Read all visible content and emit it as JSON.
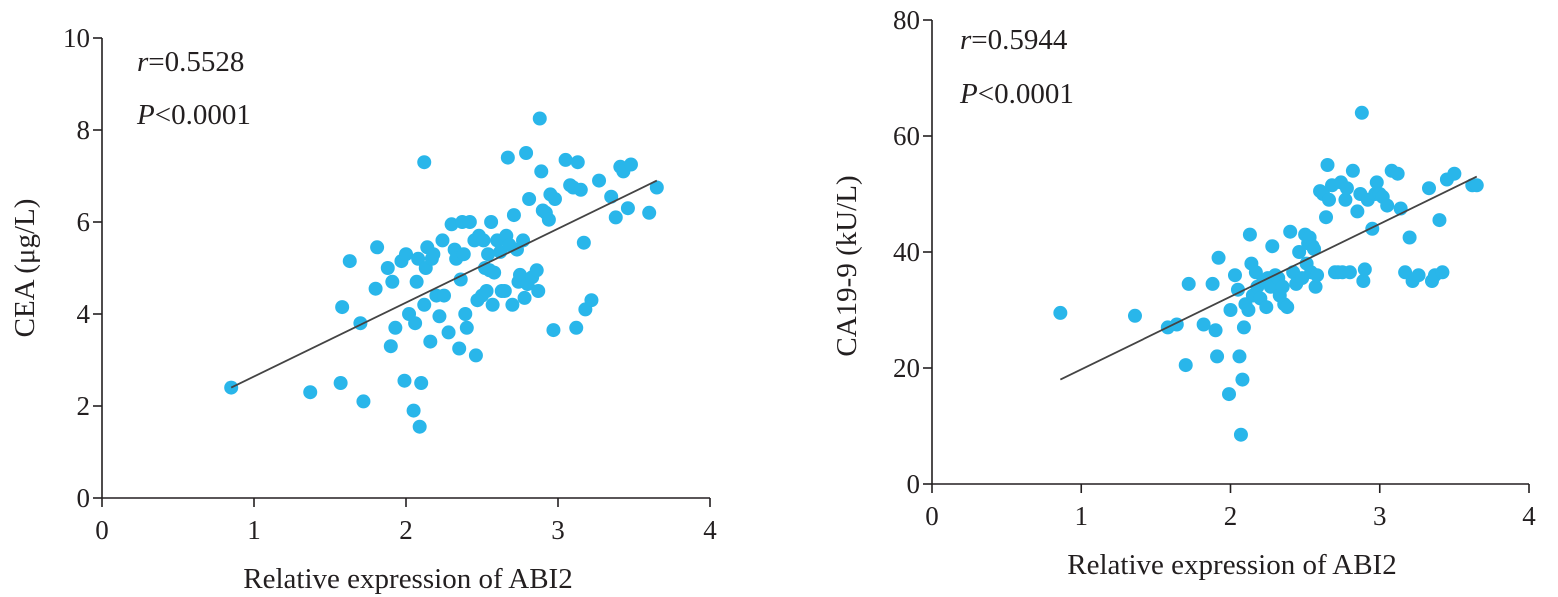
{
  "colors": {
    "point": "#29b6ea",
    "axis": "#231f20",
    "fit": "#444444"
  },
  "chart_data": [
    {
      "type": "scatter",
      "title": "",
      "xlabel": "Relative expression of ABI2",
      "ylabel": "CEA (μg/L)",
      "xlim": [
        0,
        4
      ],
      "ylim": [
        0,
        10
      ],
      "xticks": [
        0,
        1,
        2,
        3,
        4
      ],
      "yticks": [
        0,
        2,
        4,
        6,
        8,
        10
      ],
      "grid": false,
      "stats": {
        "r_symbol": "r",
        "r_value": "=0.5528",
        "p_symbol": "P",
        "p_value": "<0.0001"
      },
      "fit_line": {
        "x": [
          0.85,
          3.65
        ],
        "y": [
          2.4,
          6.9
        ]
      },
      "points": {
        "x": [
          0.85,
          1.37,
          1.57,
          1.58,
          1.63,
          1.7,
          1.72,
          1.8,
          1.81,
          1.88,
          1.9,
          1.91,
          1.93,
          1.97,
          1.99,
          2.0,
          2.02,
          2.05,
          2.06,
          2.07,
          2.08,
          2.09,
          2.1,
          2.12,
          2.12,
          2.13,
          2.14,
          2.16,
          2.17,
          2.18,
          2.2,
          2.22,
          2.24,
          2.25,
          2.28,
          2.3,
          2.32,
          2.33,
          2.35,
          2.36,
          2.37,
          2.38,
          2.39,
          2.4,
          2.42,
          2.45,
          2.46,
          2.47,
          2.48,
          2.5,
          2.51,
          2.52,
          2.53,
          2.54,
          2.55,
          2.56,
          2.57,
          2.58,
          2.6,
          2.62,
          2.63,
          2.65,
          2.66,
          2.67,
          2.68,
          2.7,
          2.71,
          2.73,
          2.74,
          2.75,
          2.77,
          2.78,
          2.79,
          2.8,
          2.81,
          2.83,
          2.86,
          2.87,
          2.88,
          2.89,
          2.9,
          2.92,
          2.94,
          2.95,
          2.97,
          2.98,
          3.05,
          3.08,
          3.1,
          3.12,
          3.13,
          3.15,
          3.17,
          3.18,
          3.22,
          3.27,
          3.35,
          3.38,
          3.41,
          3.43,
          3.46,
          3.48,
          3.6,
          3.65
        ],
        "y": [
          2.4,
          2.3,
          2.5,
          4.15,
          5.15,
          3.8,
          2.1,
          4.55,
          5.45,
          5.0,
          3.3,
          4.7,
          3.7,
          5.15,
          2.55,
          5.3,
          4.0,
          1.9,
          3.8,
          4.7,
          5.2,
          1.55,
          2.5,
          4.2,
          7.3,
          5.0,
          5.45,
          3.4,
          5.2,
          5.3,
          4.4,
          3.95,
          5.6,
          4.4,
          3.6,
          5.95,
          5.4,
          5.2,
          3.25,
          4.75,
          6.0,
          5.3,
          4.0,
          3.7,
          6.0,
          5.6,
          3.1,
          4.3,
          5.7,
          4.4,
          5.6,
          5.0,
          4.5,
          5.3,
          4.95,
          6.0,
          4.2,
          4.9,
          5.6,
          5.35,
          4.5,
          4.5,
          5.7,
          7.4,
          5.5,
          4.2,
          6.15,
          5.4,
          4.7,
          4.85,
          5.6,
          4.35,
          7.5,
          4.65,
          6.5,
          4.8,
          4.95,
          4.5,
          8.25,
          7.1,
          6.25,
          6.2,
          6.05,
          6.6,
          3.65,
          6.5,
          7.35,
          6.8,
          6.75,
          3.7,
          7.3,
          6.7,
          5.55,
          4.1,
          4.3,
          6.9,
          6.55,
          6.1,
          7.2,
          7.1,
          6.3,
          7.25,
          6.2,
          6.75
        ]
      }
    },
    {
      "type": "scatter",
      "title": "",
      "xlabel": "Relative expression of ABI2",
      "ylabel": "CA19-9 (kU/L)",
      "xlim": [
        0,
        4
      ],
      "ylim": [
        0,
        80
      ],
      "xticks": [
        0,
        1,
        2,
        3,
        4
      ],
      "yticks": [
        0,
        20,
        40,
        60,
        80
      ],
      "grid": false,
      "stats": {
        "r_symbol": "r",
        "r_value": "=0.5944",
        "p_symbol": "P",
        "p_value": "<0.0001"
      },
      "fit_line": {
        "x": [
          0.86,
          3.65
        ],
        "y": [
          18.0,
          53.0
        ]
      },
      "points": {
        "x": [
          0.86,
          1.36,
          1.58,
          1.64,
          1.7,
          1.72,
          1.82,
          1.88,
          1.9,
          1.91,
          1.92,
          1.99,
          2.0,
          2.03,
          2.05,
          2.06,
          2.07,
          2.08,
          2.09,
          2.1,
          2.12,
          2.13,
          2.14,
          2.15,
          2.17,
          2.18,
          2.2,
          2.22,
          2.24,
          2.25,
          2.27,
          2.28,
          2.3,
          2.32,
          2.33,
          2.35,
          2.36,
          2.38,
          2.4,
          2.42,
          2.44,
          2.46,
          2.48,
          2.5,
          2.51,
          2.52,
          2.53,
          2.54,
          2.55,
          2.56,
          2.57,
          2.58,
          2.6,
          2.62,
          2.64,
          2.65,
          2.66,
          2.68,
          2.7,
          2.72,
          2.74,
          2.75,
          2.77,
          2.78,
          2.8,
          2.82,
          2.85,
          2.87,
          2.88,
          2.89,
          2.9,
          2.92,
          2.95,
          2.97,
          2.98,
          3.0,
          3.02,
          3.05,
          3.08,
          3.12,
          3.14,
          3.17,
          3.2,
          3.22,
          3.26,
          3.33,
          3.35,
          3.37,
          3.4,
          3.42,
          3.45,
          3.5,
          3.62,
          3.65
        ],
        "y": [
          29.5,
          29.0,
          27.0,
          27.5,
          20.5,
          34.5,
          27.5,
          34.5,
          26.5,
          22.0,
          39.0,
          15.5,
          30.0,
          36.0,
          33.5,
          22.0,
          8.5,
          18.0,
          27.0,
          31.0,
          30.0,
          43.0,
          38.0,
          32.5,
          36.5,
          34.0,
          32.0,
          35.0,
          30.5,
          35.5,
          34.0,
          41.0,
          36.0,
          35.5,
          32.5,
          34.0,
          31.0,
          30.5,
          43.5,
          36.5,
          34.5,
          40.0,
          35.5,
          43.0,
          38.0,
          41.5,
          42.5,
          36.5,
          41.0,
          40.5,
          34.0,
          36.0,
          50.5,
          50.0,
          46.0,
          55.0,
          49.0,
          51.5,
          36.5,
          36.5,
          52.0,
          36.5,
          49.0,
          51.0,
          36.5,
          54.0,
          47.0,
          50.0,
          64.0,
          35.0,
          37.0,
          49.0,
          44.0,
          50.0,
          52.0,
          50.0,
          49.5,
          48.0,
          54.0,
          53.5,
          47.5,
          36.5,
          42.5,
          35.0,
          36.0,
          51.0,
          35.0,
          36.0,
          45.5,
          36.5,
          52.5,
          53.5,
          51.5,
          51.5
        ]
      }
    }
  ]
}
